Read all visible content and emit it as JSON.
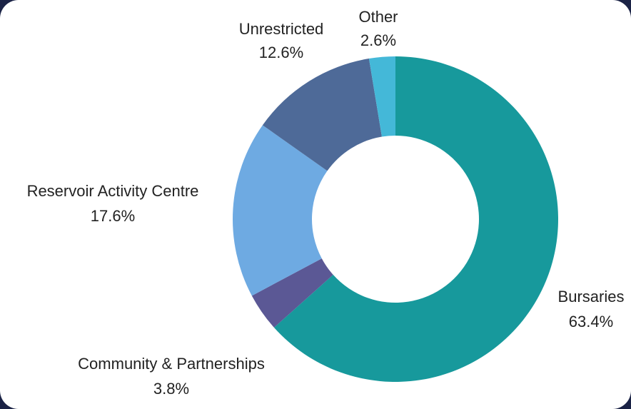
{
  "chart_data": {
    "type": "pie",
    "style": "donut",
    "title": "",
    "slices": [
      {
        "name": "Bursaries",
        "value": 63.4,
        "label": "63.4%",
        "color": "#17999c"
      },
      {
        "name": "Community & Partnerships",
        "value": 3.8,
        "label": "3.8%",
        "color": "#5b5895"
      },
      {
        "name": "Reservoir Activity Centre",
        "value": 17.6,
        "label": "17.6%",
        "color": "#6eaae2"
      },
      {
        "name": "Unrestricted",
        "value": 12.6,
        "label": "12.6%",
        "color": "#4e6a98"
      },
      {
        "name": "Other",
        "value": 2.6,
        "label": "2.6%",
        "color": "#44b8d8"
      }
    ],
    "start_angle_deg": 0,
    "direction": "clockwise",
    "legend": "none"
  },
  "colors": {
    "background": "#1b2346",
    "card": "#ffffff"
  }
}
